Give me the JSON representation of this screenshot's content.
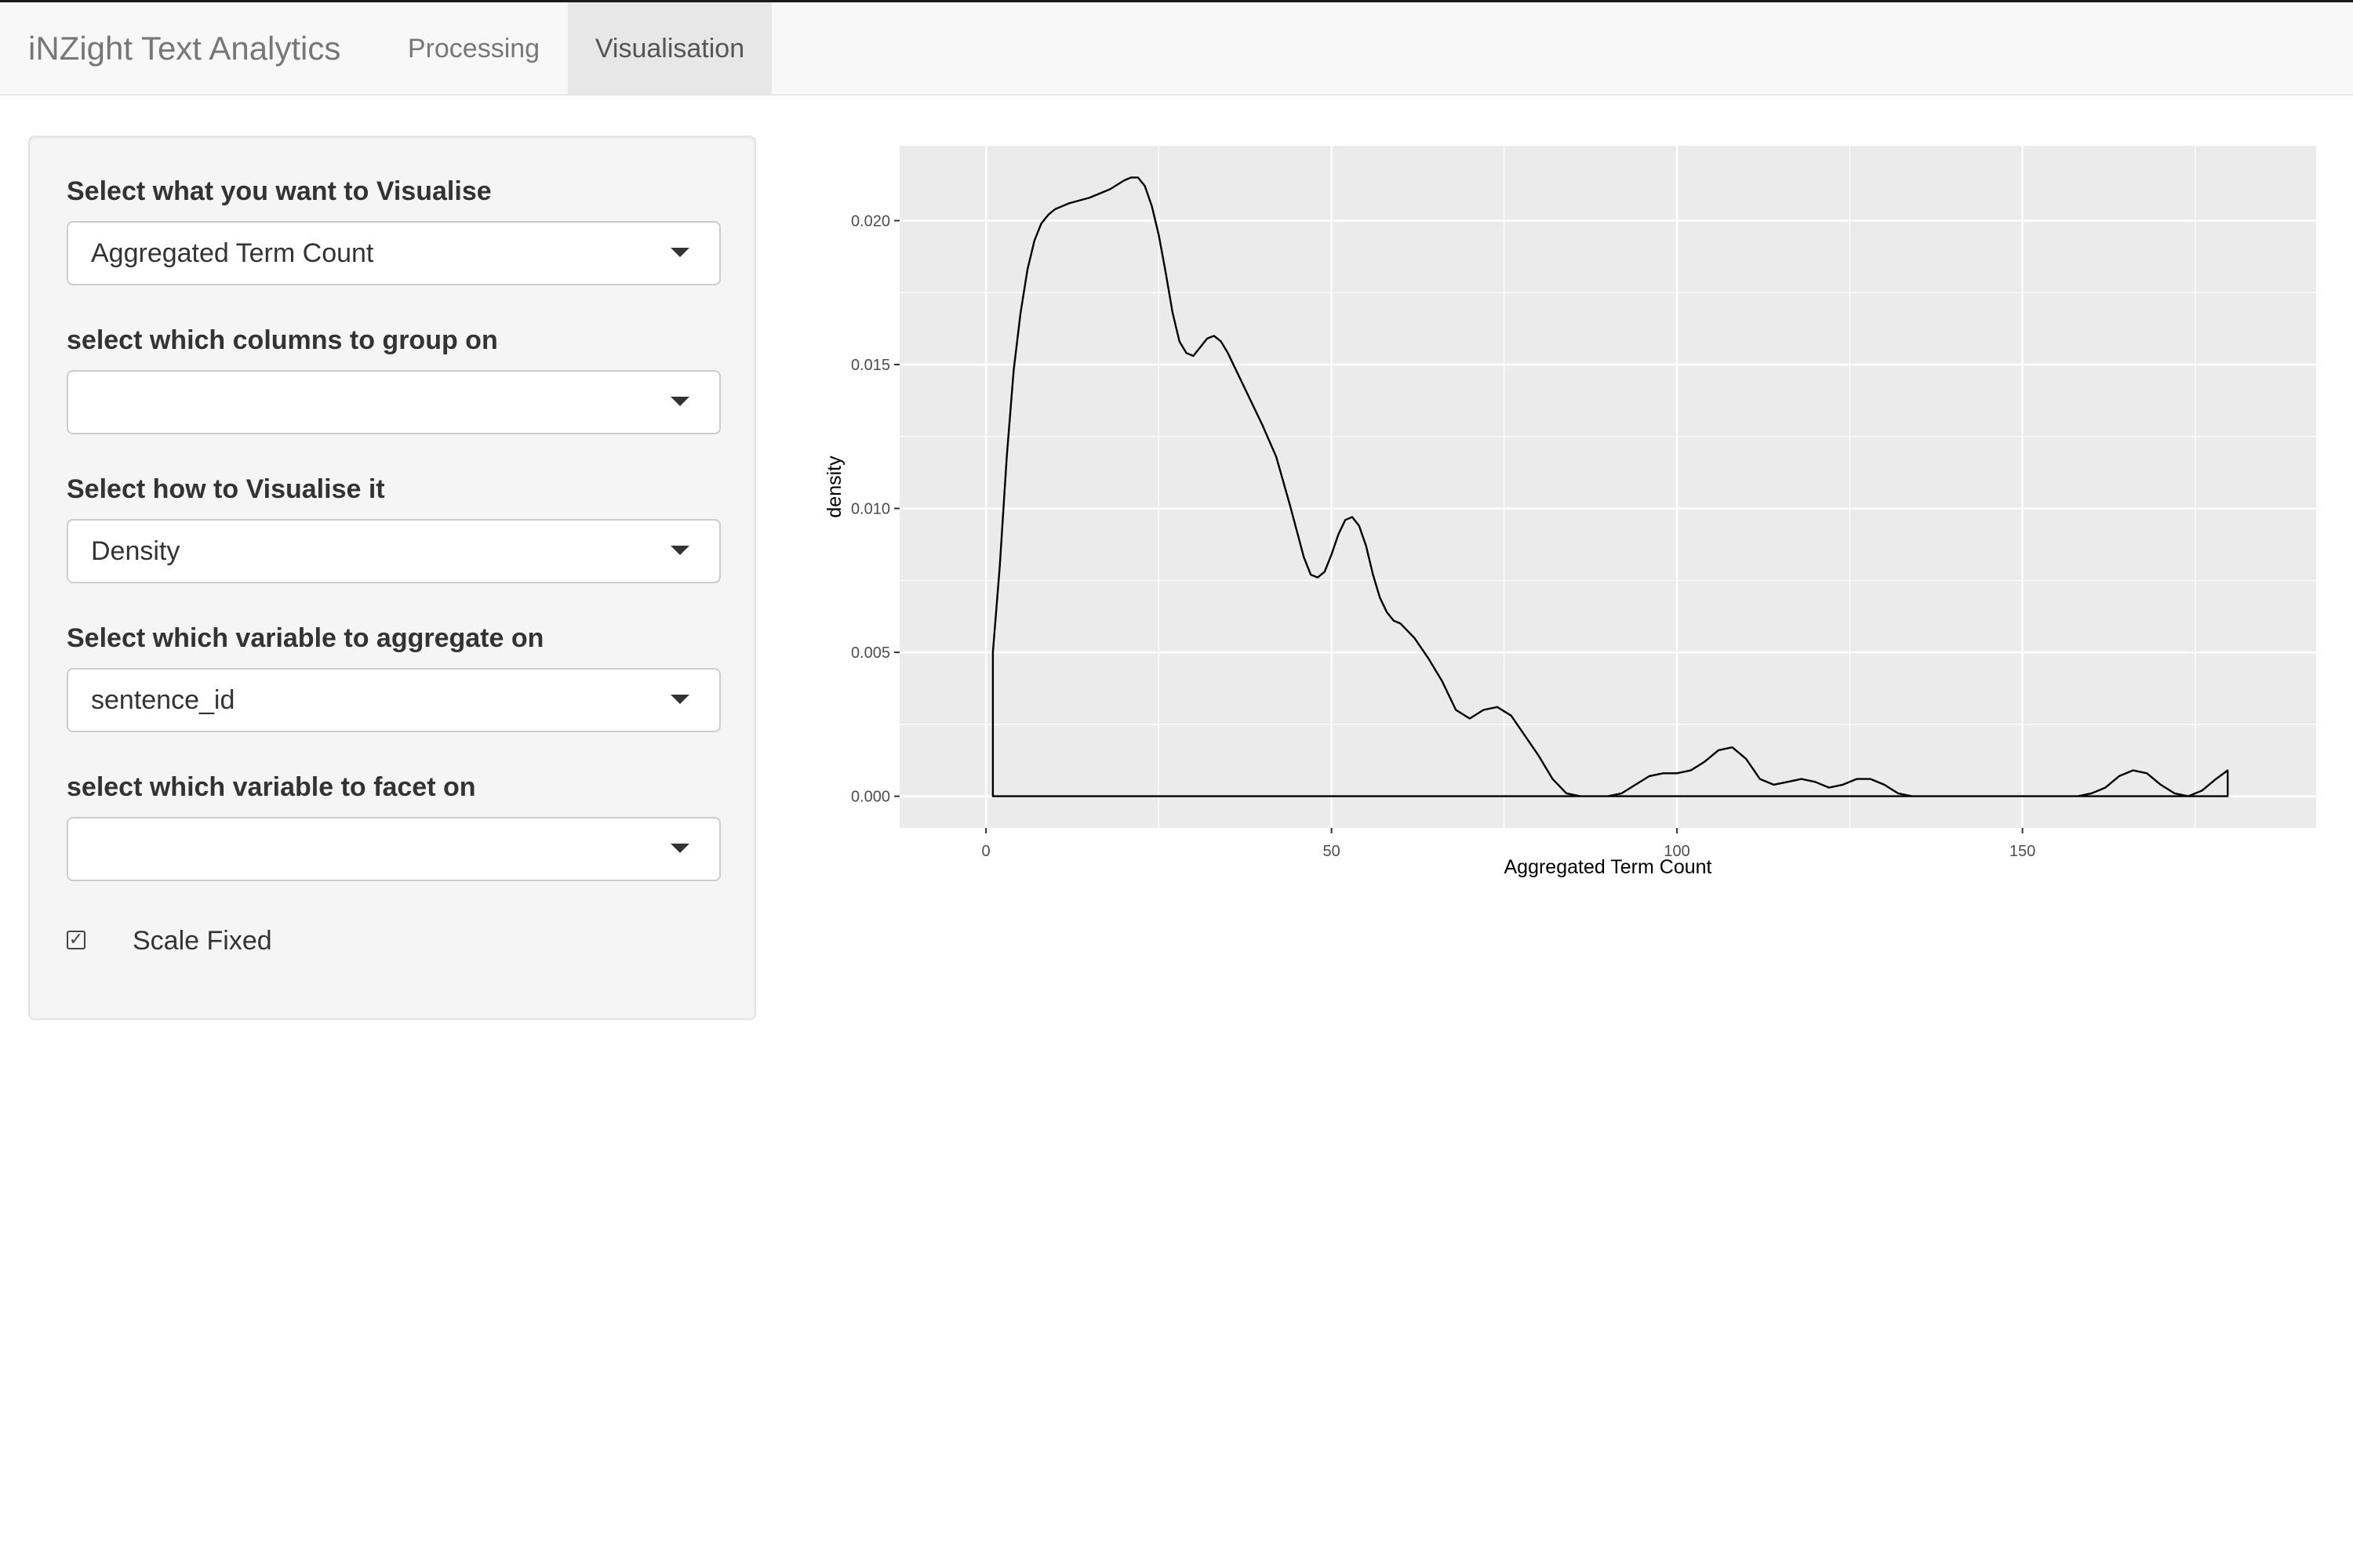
{
  "navbar": {
    "brand": "iNZight Text Analytics",
    "tabs": [
      {
        "label": "Processing",
        "active": false
      },
      {
        "label": "Visualisation",
        "active": true
      }
    ]
  },
  "sidebar": {
    "fields": [
      {
        "label": "Select what you want to Visualise",
        "value": "Aggregated Term Count"
      },
      {
        "label": "select which columns to group on",
        "value": ""
      },
      {
        "label": "Select how to Visualise it",
        "value": "Density"
      },
      {
        "label": "Select which variable to aggregate on",
        "value": "sentence_id"
      },
      {
        "label": "select which variable to facet on",
        "value": ""
      }
    ],
    "checkbox": {
      "label": "Scale Fixed",
      "checked": true
    }
  },
  "colors": {
    "panel_background": "#ebebeb",
    "gridline": "#ffffff",
    "curve": "#000000",
    "navbar_background": "#f8f8f8",
    "active_tab_background": "#e7e7e7"
  },
  "chart_data": {
    "type": "area",
    "title": "",
    "xlabel": "Aggregated Term Count",
    "ylabel": "density",
    "xlim": [
      -12.5,
      192.5
    ],
    "ylim": [
      -0.0011,
      0.0226
    ],
    "x_ticks": [
      "0",
      "50",
      "100",
      "150"
    ],
    "x_tick_values": [
      0,
      50,
      100,
      150
    ],
    "y_ticks": [
      "0.000",
      "0.005",
      "0.010",
      "0.015",
      "0.020"
    ],
    "y_tick_values": [
      0,
      0.005,
      0.01,
      0.015,
      0.02
    ],
    "grid": true,
    "legend": "none",
    "series": [
      {
        "x": [
          1,
          1,
          2,
          3,
          4,
          5,
          6,
          7,
          8,
          9,
          10,
          12,
          15,
          18,
          20,
          21,
          22,
          23,
          24,
          25,
          26,
          27,
          28,
          29,
          30,
          31,
          32,
          33,
          34,
          35,
          36,
          38,
          40,
          42,
          44,
          46,
          47,
          48,
          49,
          50,
          51,
          52,
          53,
          54,
          55,
          56,
          57,
          58,
          59,
          60,
          62,
          64,
          66,
          68,
          70,
          72,
          74,
          76,
          78,
          80,
          82,
          84,
          86,
          88,
          90,
          92,
          94,
          96,
          98,
          100,
          102,
          104,
          106,
          108,
          110,
          112,
          114,
          116,
          118,
          120,
          122,
          124,
          126,
          128,
          130,
          132,
          134,
          140,
          150,
          158,
          160,
          162,
          164,
          166,
          168,
          170,
          172,
          174,
          176,
          178,
          179.7,
          179.7
        ],
        "y": [
          0,
          0.005,
          0.008,
          0.0118,
          0.0148,
          0.0168,
          0.0183,
          0.0193,
          0.0199,
          0.0202,
          0.0204,
          0.0206,
          0.0208,
          0.0211,
          0.0214,
          0.0215,
          0.0215,
          0.0212,
          0.0205,
          0.0195,
          0.0182,
          0.0168,
          0.0158,
          0.0154,
          0.0153,
          0.0156,
          0.0159,
          0.016,
          0.0158,
          0.0154,
          0.0149,
          0.0139,
          0.0129,
          0.0118,
          0.0101,
          0.0083,
          0.0077,
          0.0076,
          0.0078,
          0.0084,
          0.0091,
          0.0096,
          0.0097,
          0.0094,
          0.0087,
          0.0077,
          0.0069,
          0.0064,
          0.0061,
          0.006,
          0.0055,
          0.0048,
          0.004,
          0.003,
          0.0027,
          0.003,
          0.0031,
          0.0028,
          0.0021,
          0.0014,
          0.0006,
          0.0001,
          0,
          0,
          0,
          0.0001,
          0.0004,
          0.0007,
          0.0008,
          0.0008,
          0.0009,
          0.0012,
          0.0016,
          0.0017,
          0.0013,
          0.0006,
          0.0004,
          0.0005,
          0.0006,
          0.0005,
          0.0003,
          0.0004,
          0.0006,
          0.0006,
          0.0004,
          0.0001,
          0,
          0,
          0,
          0,
          0.0001,
          0.0003,
          0.0007,
          0.0009,
          0.0008,
          0.0004,
          0.0001,
          0,
          0.0002,
          0.0006,
          0.0009,
          0
        ]
      }
    ]
  }
}
